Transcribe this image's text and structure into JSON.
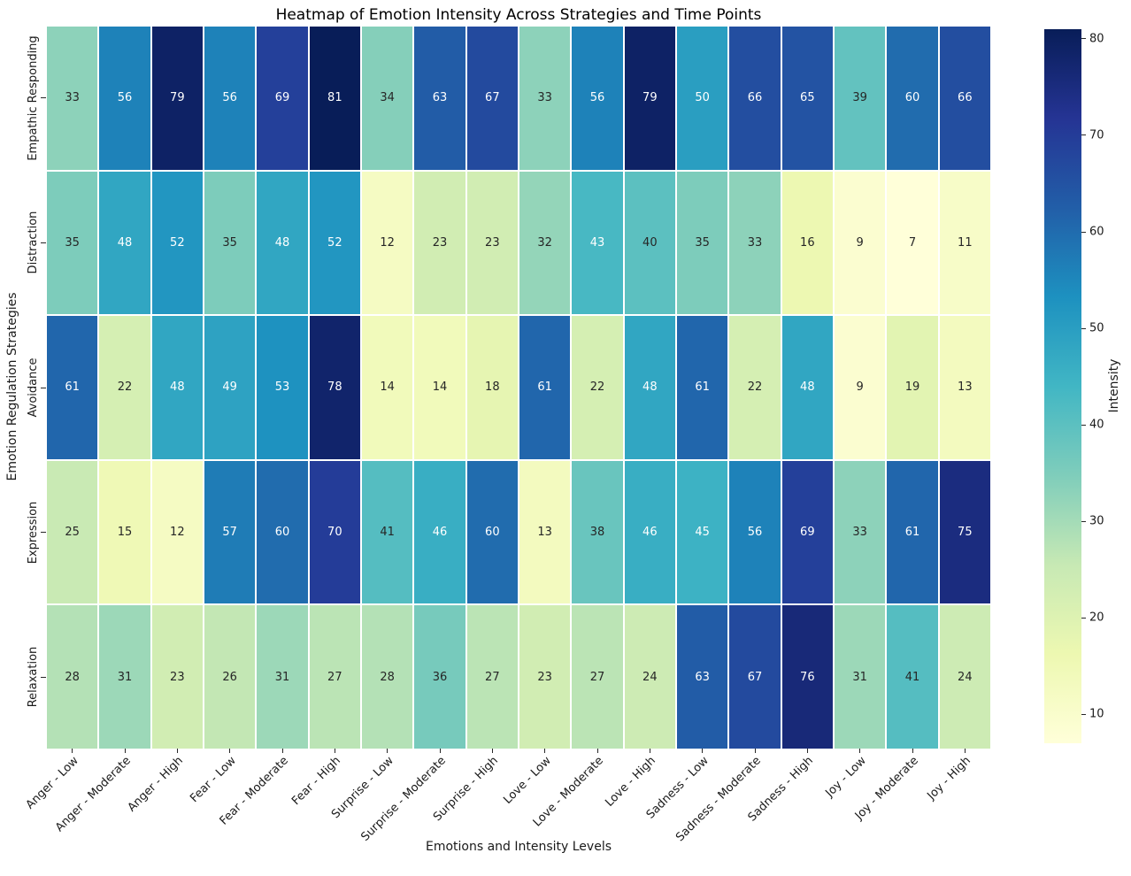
{
  "chart_data": {
    "type": "heatmap",
    "title": "Heatmap of Emotion Intensity Across Strategies and Time Points",
    "xlabel": "Emotions and Intensity Levels",
    "ylabel": "Emotion Regulation Strategies",
    "rows": [
      "Empathic Responding",
      "Distraction",
      "Avoidance",
      "Expression",
      "Relaxation"
    ],
    "columns": [
      "Anger - Low",
      "Anger - Moderate",
      "Anger - High",
      "Fear - Low",
      "Fear - Moderate",
      "Fear - High",
      "Surprise - Low",
      "Surprise - Moderate",
      "Surprise - High",
      "Love - Low",
      "Love - Moderate",
      "Love - High",
      "Sadness - Low",
      "Sadness - Moderate",
      "Sadness - High",
      "Joy - Low",
      "Joy - Moderate",
      "Joy - High"
    ],
    "values": [
      [
        33,
        56,
        79,
        56,
        69,
        81,
        34,
        63,
        67,
        33,
        56,
        79,
        50,
        66,
        65,
        39,
        60,
        66
      ],
      [
        35,
        48,
        52,
        35,
        48,
        52,
        12,
        23,
        23,
        32,
        43,
        40,
        35,
        33,
        16,
        9,
        7,
        11
      ],
      [
        61,
        22,
        48,
        49,
        53,
        78,
        14,
        14,
        18,
        61,
        22,
        48,
        61,
        22,
        48,
        9,
        19,
        13
      ],
      [
        25,
        15,
        12,
        57,
        60,
        70,
        41,
        46,
        60,
        13,
        38,
        46,
        45,
        56,
        69,
        33,
        61,
        75
      ],
      [
        28,
        31,
        23,
        26,
        31,
        27,
        28,
        36,
        27,
        23,
        27,
        24,
        63,
        67,
        76,
        31,
        41,
        24
      ]
    ],
    "colorbar": {
      "label": "Intensity",
      "ticks": [
        10,
        20,
        30,
        40,
        50,
        60,
        70,
        80
      ],
      "vmin": 7,
      "vmax": 81
    },
    "colormap": "YlGnBu",
    "colormap_stops": [
      "#ffffd9",
      "#edf8b1",
      "#c7e9b4",
      "#7fcdbb",
      "#41b6c4",
      "#1d91c0",
      "#225ea8",
      "#253494",
      "#081d58"
    ],
    "annotation_colors": {
      "light_text": "#ffffff",
      "dark_text": "#262626"
    },
    "grid": "white-lines-between-cells",
    "legend_position": "right-colorbar"
  }
}
